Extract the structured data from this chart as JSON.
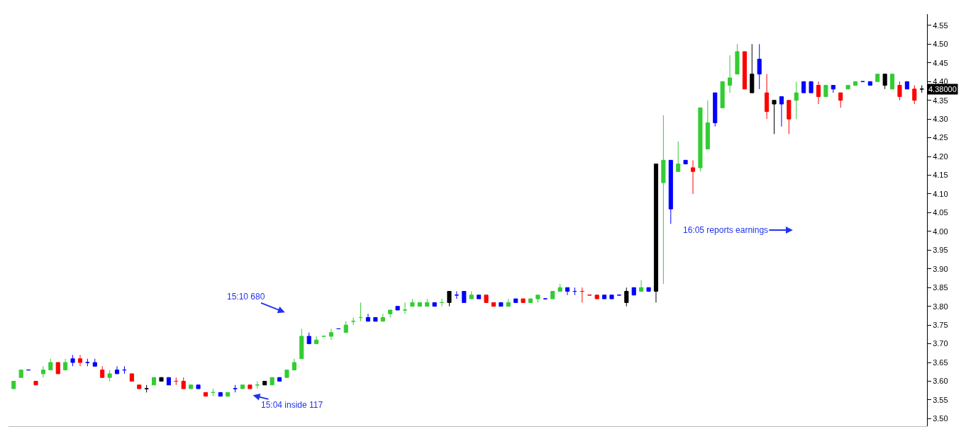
{
  "chart_data": {
    "type": "candlestick",
    "categories": [
      null,
      null,
      null,
      null,
      null,
      null,
      null,
      null,
      null,
      null,
      null,
      null,
      null,
      null,
      null,
      null,
      null,
      null,
      null,
      null,
      null,
      null,
      null,
      null,
      null,
      null,
      null,
      null,
      null,
      null,
      null,
      null,
      null,
      null,
      null,
      null,
      null,
      null,
      null,
      null,
      null,
      null,
      null,
      null,
      null,
      null,
      null,
      null,
      null,
      null,
      null,
      null,
      null,
      null,
      null,
      null,
      null,
      null,
      null,
      null,
      null,
      null,
      null,
      null,
      null,
      null,
      null,
      null,
      null,
      null,
      null,
      null,
      null,
      null,
      null,
      null,
      null,
      null,
      null,
      null,
      null,
      null,
      null,
      null,
      null,
      null,
      null,
      null,
      null,
      null,
      null,
      null,
      null,
      null,
      null,
      null,
      null,
      null,
      null,
      null,
      null,
      null,
      null,
      null,
      null,
      null,
      null,
      null,
      null,
      null,
      null,
      null,
      null,
      null,
      null,
      null,
      null,
      null,
      null,
      null,
      null,
      null,
      null,
      null
    ],
    "ohlc": [
      [
        3.58,
        3.6,
        3.58,
        3.6
      ],
      [
        3.61,
        3.63,
        3.61,
        3.63
      ],
      [
        3.63,
        3.63,
        3.63,
        3.63
      ],
      [
        3.6,
        3.6,
        3.59,
        3.59
      ],
      [
        3.62,
        3.64,
        3.61,
        3.63
      ],
      [
        3.63,
        3.66,
        3.63,
        3.65
      ],
      [
        3.65,
        3.65,
        3.62,
        3.62
      ],
      [
        3.63,
        3.66,
        3.63,
        3.65
      ],
      [
        3.65,
        3.67,
        3.64,
        3.66
      ],
      [
        3.66,
        3.67,
        3.64,
        3.65
      ],
      [
        3.65,
        3.66,
        3.64,
        3.65
      ],
      [
        3.65,
        3.66,
        3.64,
        3.64
      ],
      [
        3.63,
        3.64,
        3.61,
        3.61
      ],
      [
        3.61,
        3.63,
        3.6,
        3.62
      ],
      [
        3.62,
        3.64,
        3.62,
        3.63
      ],
      [
        3.63,
        3.64,
        3.62,
        3.63
      ],
      [
        3.62,
        3.62,
        3.6,
        3.6
      ],
      [
        3.59,
        3.59,
        3.58,
        3.58
      ],
      [
        3.58,
        3.59,
        3.57,
        3.58
      ],
      [
        3.59,
        3.61,
        3.59,
        3.61
      ],
      [
        3.61,
        3.61,
        3.6,
        3.6
      ],
      [
        3.61,
        3.61,
        3.59,
        3.59
      ],
      [
        3.6,
        3.61,
        3.59,
        3.6
      ],
      [
        3.6,
        3.61,
        3.58,
        3.58
      ],
      [
        3.58,
        3.59,
        3.58,
        3.59
      ],
      [
        3.59,
        3.59,
        3.58,
        3.58
      ],
      [
        3.57,
        3.57,
        3.56,
        3.56
      ],
      [
        3.57,
        3.58,
        3.56,
        3.57
      ],
      [
        3.57,
        3.57,
        3.56,
        3.56
      ],
      [
        3.56,
        3.57,
        3.56,
        3.57
      ],
      [
        3.58,
        3.59,
        3.57,
        3.58
      ],
      [
        3.58,
        3.59,
        3.58,
        3.59
      ],
      [
        3.59,
        3.59,
        3.58,
        3.58
      ],
      [
        3.59,
        3.6,
        3.58,
        3.59
      ],
      [
        3.6,
        3.6,
        3.59,
        3.59
      ],
      [
        3.59,
        3.61,
        3.59,
        3.61
      ],
      [
        3.61,
        3.61,
        3.6,
        3.6
      ],
      [
        3.61,
        3.63,
        3.61,
        3.63
      ],
      [
        3.63,
        3.66,
        3.63,
        3.65
      ],
      [
        3.66,
        3.74,
        3.66,
        3.72
      ],
      [
        3.72,
        3.73,
        3.7,
        3.7
      ],
      [
        3.7,
        3.72,
        3.7,
        3.71
      ],
      [
        3.72,
        3.72,
        3.72,
        3.72
      ],
      [
        3.72,
        3.74,
        3.71,
        3.73
      ],
      [
        3.74,
        3.74,
        3.74,
        3.74
      ],
      [
        3.73,
        3.76,
        3.73,
        3.75
      ],
      [
        3.76,
        3.77,
        3.75,
        3.76
      ],
      [
        3.77,
        3.81,
        3.76,
        3.77
      ],
      [
        3.77,
        3.78,
        3.76,
        3.76
      ],
      [
        3.77,
        3.77,
        3.76,
        3.76
      ],
      [
        3.76,
        3.78,
        3.76,
        3.77
      ],
      [
        3.78,
        3.79,
        3.77,
        3.79
      ],
      [
        3.79,
        3.8,
        3.79,
        3.8
      ],
      [
        3.79,
        3.81,
        3.78,
        3.79
      ],
      [
        3.8,
        3.82,
        3.8,
        3.81
      ],
      [
        3.8,
        3.81,
        3.8,
        3.81
      ],
      [
        3.8,
        3.82,
        3.8,
        3.81
      ],
      [
        3.81,
        3.81,
        3.8,
        3.8
      ],
      [
        3.81,
        3.82,
        3.8,
        3.81
      ],
      [
        3.81,
        3.84,
        3.8,
        3.84
      ],
      [
        3.83,
        3.84,
        3.82,
        3.83
      ],
      [
        3.81,
        3.84,
        3.81,
        3.84
      ],
      [
        3.82,
        3.84,
        3.82,
        3.83
      ],
      [
        3.83,
        3.83,
        3.82,
        3.82
      ],
      [
        3.83,
        3.83,
        3.81,
        3.81
      ],
      [
        3.81,
        3.81,
        3.8,
        3.8
      ],
      [
        3.8,
        3.81,
        3.8,
        3.81
      ],
      [
        3.8,
        3.82,
        3.8,
        3.81
      ],
      [
        3.81,
        3.82,
        3.81,
        3.82
      ],
      [
        3.82,
        3.82,
        3.81,
        3.81
      ],
      [
        3.81,
        3.82,
        3.81,
        3.82
      ],
      [
        3.82,
        3.83,
        3.81,
        3.83
      ],
      [
        3.82,
        3.82,
        3.82,
        3.82
      ],
      [
        3.82,
        3.84,
        3.82,
        3.84
      ],
      [
        3.84,
        3.86,
        3.84,
        3.85
      ],
      [
        3.84,
        3.85,
        3.83,
        3.85
      ],
      [
        3.84,
        3.85,
        3.83,
        3.84
      ],
      [
        3.84,
        3.85,
        3.81,
        3.84
      ],
      [
        3.83,
        3.83,
        3.83,
        3.83
      ],
      [
        3.83,
        3.83,
        3.82,
        3.82
      ],
      [
        3.82,
        3.83,
        3.82,
        3.83
      ],
      [
        3.83,
        3.83,
        3.82,
        3.82
      ],
      [
        3.83,
        3.83,
        3.83,
        3.83
      ],
      [
        3.81,
        3.85,
        3.8,
        3.84
      ],
      [
        3.83,
        3.85,
        3.83,
        3.85
      ],
      [
        3.84,
        3.87,
        3.84,
        3.85
      ],
      [
        3.84,
        3.85,
        3.84,
        3.85
      ],
      [
        3.84,
        4.18,
        3.81,
        4.18
      ],
      [
        4.13,
        4.31,
        3.86,
        4.19
      ],
      [
        4.19,
        4.19,
        4.02,
        4.06
      ],
      [
        4.16,
        4.24,
        4.16,
        4.18
      ],
      [
        4.19,
        4.19,
        4.18,
        4.18
      ],
      [
        4.17,
        4.19,
        4.1,
        4.16
      ],
      [
        4.17,
        4.33,
        4.16,
        4.33
      ],
      [
        4.22,
        4.35,
        4.22,
        4.29
      ],
      [
        4.29,
        4.37,
        4.28,
        4.37
      ],
      [
        4.33,
        4.4,
        4.33,
        4.4
      ],
      [
        4.39,
        4.47,
        4.37,
        4.41
      ],
      [
        4.42,
        4.5,
        4.42,
        4.48
      ],
      [
        4.48,
        4.48,
        4.38,
        4.38
      ],
      [
        4.37,
        4.5,
        4.37,
        4.42
      ],
      [
        4.46,
        4.5,
        4.38,
        4.42
      ],
      [
        4.37,
        4.42,
        4.3,
        4.32
      ],
      [
        4.35,
        4.35,
        4.26,
        4.34
      ],
      [
        4.36,
        4.36,
        4.28,
        4.34
      ],
      [
        4.35,
        4.35,
        4.26,
        4.3
      ],
      [
        4.35,
        4.4,
        4.3,
        4.37
      ],
      [
        4.37,
        4.4,
        4.37,
        4.4
      ],
      [
        4.4,
        4.4,
        4.37,
        4.37
      ],
      [
        4.39,
        4.4,
        4.34,
        4.36
      ],
      [
        4.36,
        4.39,
        4.36,
        4.39
      ],
      [
        4.38,
        4.39,
        4.37,
        4.39
      ],
      [
        4.37,
        4.37,
        4.33,
        4.35
      ],
      [
        4.38,
        4.39,
        4.38,
        4.39
      ],
      [
        4.39,
        4.4,
        4.39,
        4.4
      ],
      [
        4.4,
        4.4,
        4.4,
        4.4
      ],
      [
        4.4,
        4.4,
        4.39,
        4.39
      ],
      [
        4.4,
        4.42,
        4.4,
        4.42
      ],
      [
        4.42,
        4.42,
        4.38,
        4.39
      ],
      [
        4.38,
        4.42,
        4.38,
        4.42
      ],
      [
        4.39,
        4.4,
        4.35,
        4.36
      ],
      [
        4.4,
        4.4,
        4.38,
        4.38
      ],
      [
        4.38,
        4.39,
        4.34,
        4.35
      ],
      [
        4.38,
        4.39,
        4.37,
        4.38
      ]
    ],
    "colors": [
      "#33cc33",
      "#33cc33",
      "#0000ff",
      "#ff0000",
      "#33cc33",
      "#33cc33",
      "#ff0000",
      "#33cc33",
      "#0000ff",
      "#ff0000",
      "#0000ff",
      "#0000ff",
      "#ff0000",
      "#33cc33",
      "#0000ff",
      "#0000ff",
      "#ff0000",
      "#ff0000",
      "#000000",
      "#33cc33",
      "#000000",
      "#0000ff",
      "#ff0000",
      "#ff0000",
      "#33cc33",
      "#0000ff",
      "#ff0000",
      "#33cc33",
      "#0000ff",
      "#33cc33",
      "#0000ff",
      "#33cc33",
      "#ff0000",
      "#33cc33",
      "#000000",
      "#33cc33",
      "#0000ff",
      "#33cc33",
      "#33cc33",
      "#33cc33",
      "#0000ff",
      "#33cc33",
      "#33cc33",
      "#33cc33",
      "#0000ff",
      "#33cc33",
      "#33cc33",
      "#33cc33",
      "#0000ff",
      "#0000ff",
      "#33cc33",
      "#33cc33",
      "#0000ff",
      "#33cc33",
      "#33cc33",
      "#33cc33",
      "#33cc33",
      "#0000ff",
      "#33cc33",
      "#000000",
      "#0000ff",
      "#0000ff",
      "#33cc33",
      "#0000ff",
      "#ff0000",
      "#ff0000",
      "#0000ff",
      "#33cc33",
      "#0000ff",
      "#ff0000",
      "#33cc33",
      "#33cc33",
      "#0000ff",
      "#33cc33",
      "#33cc33",
      "#0000ff",
      "#0000ff",
      "#ff0000",
      "#ff0000",
      "#ff0000",
      "#0000ff",
      "#0000ff",
      "#0000ff",
      "#000000",
      "#0000ff",
      "#33cc33",
      "#0000ff",
      "#000000",
      "#33cc33",
      "#0000ff",
      "#33cc33",
      "#0000ff",
      "#ff0000",
      "#33cc33",
      "#33cc33",
      "#0000ff",
      "#33cc33",
      "#33cc33",
      "#33cc33",
      "#ff0000",
      "#000000",
      "#0000ff",
      "#ff0000",
      "#000000",
      "#0000ff",
      "#ff0000",
      "#33cc33",
      "#0000ff",
      "#0000ff",
      "#ff0000",
      "#33cc33",
      "#0000ff",
      "#ff0000",
      "#33cc33",
      "#33cc33",
      "#0000ff",
      "#0000ff",
      "#33cc33",
      "#000000",
      "#33cc33",
      "#ff0000",
      "#0000ff",
      "#ff0000",
      "#000000"
    ],
    "ylim": [
      3.48,
      4.58
    ],
    "yticks": [
      {
        "value": 3.5,
        "label": "3.50"
      },
      {
        "value": 3.55,
        "label": "3.55"
      },
      {
        "value": 3.6,
        "label": "3.60"
      },
      {
        "value": 3.65,
        "label": "3.65"
      },
      {
        "value": 3.7,
        "label": "3.70"
      },
      {
        "value": 3.75,
        "label": "3.75"
      },
      {
        "value": 3.8,
        "label": "3.80"
      },
      {
        "value": 3.85,
        "label": "3.85"
      },
      {
        "value": 3.9,
        "label": "3.90"
      },
      {
        "value": 3.95,
        "label": "3.95"
      },
      {
        "value": 4.0,
        "label": "4.00"
      },
      {
        "value": 4.05,
        "label": "4.05"
      },
      {
        "value": 4.1,
        "label": "4.10"
      },
      {
        "value": 4.15,
        "label": "4.15"
      },
      {
        "value": 4.2,
        "label": "4.20"
      },
      {
        "value": 4.25,
        "label": "4.25"
      },
      {
        "value": 4.3,
        "label": "4.30"
      },
      {
        "value": 4.35,
        "label": "4.35"
      },
      {
        "value": 4.4,
        "label": "4.40"
      },
      {
        "value": 4.45,
        "label": "4.45"
      },
      {
        "value": 4.5,
        "label": "4.50"
      },
      {
        "value": 4.55,
        "label": "4.55"
      }
    ],
    "annotations": [
      "15:10 680",
      "15:04 inside 117",
      "16:05 reports earnings",
      {
        "text": "4.38000",
        "y": 4.38
      }
    ],
    "tick_labels": "y"
  }
}
